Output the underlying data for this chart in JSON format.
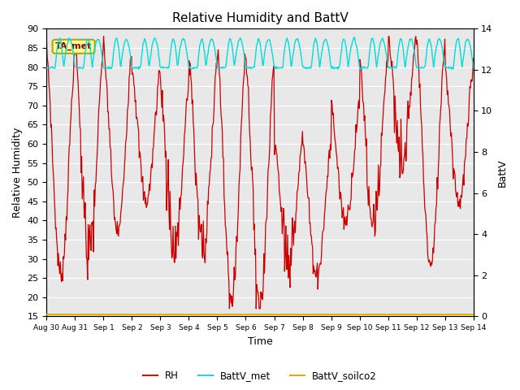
{
  "title": "Relative Humidity and BattV",
  "xlabel": "Time",
  "ylabel_left": "Relative Humidity",
  "ylabel_right": "BattV",
  "ylim_left": [
    15,
    90
  ],
  "ylim_right": [
    0,
    14
  ],
  "yticks_left": [
    15,
    20,
    25,
    30,
    35,
    40,
    45,
    50,
    55,
    60,
    65,
    70,
    75,
    80,
    85,
    90
  ],
  "yticks_right": [
    0,
    2,
    4,
    6,
    8,
    10,
    12,
    14
  ],
  "bg_color": "#ffffff",
  "plot_bg_color": "#e8e8e8",
  "grid_color": "#ffffff",
  "annotation_text": "TA_met",
  "annotation_bg": "#ffff99",
  "annotation_border": "#aaaa00",
  "rh_color": "#cc0000",
  "battv_met_color": "#00dddd",
  "battv_soilco2_color": "#ddaa00",
  "xtick_labels": [
    "Aug 30",
    "Aug 31",
    "Sep 1",
    "Sep 2",
    "Sep 3",
    "Sep 4",
    "Sep 5",
    "Sep 6",
    "Sep 7",
    "Sep 8",
    "Sep 9",
    "Sep 10",
    "Sep 11",
    "Sep 12",
    "Sep 13",
    "Sep 14"
  ]
}
